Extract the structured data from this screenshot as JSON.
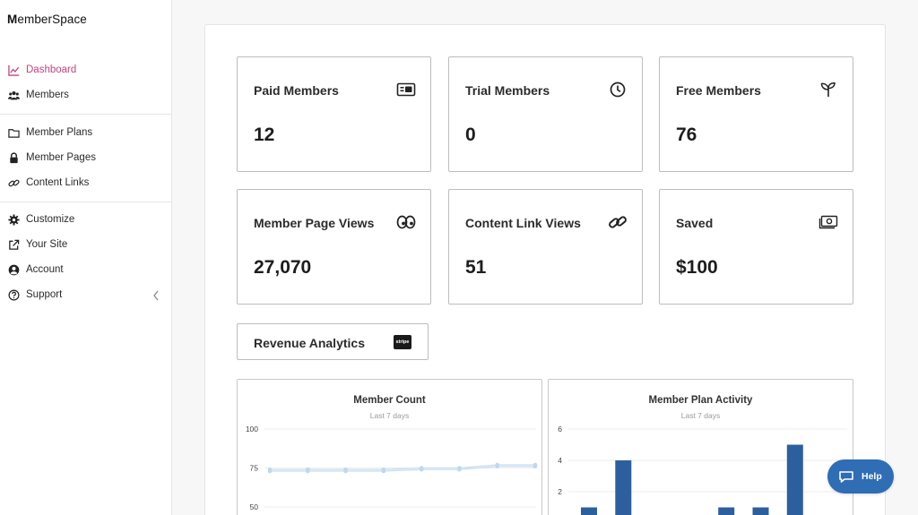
{
  "brand": {
    "logo_prefix": "M",
    "logo_text": "emberSpace"
  },
  "sidebar": {
    "items": [
      {
        "label": "Dashboard",
        "icon": "chart-line-icon",
        "active": true
      },
      {
        "label": "Members",
        "icon": "users-icon"
      },
      {
        "label": "Member Plans",
        "icon": "folder-icon"
      },
      {
        "label": "Member Pages",
        "icon": "lock-icon"
      },
      {
        "label": "Content Links",
        "icon": "link-icon"
      },
      {
        "label": "Customize",
        "icon": "gear-icon"
      },
      {
        "label": "Your Site",
        "icon": "external-link-icon"
      },
      {
        "label": "Account",
        "icon": "user-circle-icon"
      },
      {
        "label": "Support",
        "icon": "question-circle-icon"
      }
    ]
  },
  "stats": [
    {
      "title": "Paid Members",
      "value": "12",
      "icon": "id-card-icon"
    },
    {
      "title": "Trial Members",
      "value": "0",
      "icon": "clock-icon"
    },
    {
      "title": "Free Members",
      "value": "76",
      "icon": "seedling-icon"
    },
    {
      "title": "Member Page Views",
      "value": "27,070",
      "icon": "eyes-icon"
    },
    {
      "title": "Content Link Views",
      "value": "51",
      "icon": "link-icon"
    },
    {
      "title": "Saved",
      "value": "$100",
      "icon": "money-bill-icon"
    }
  ],
  "revenue": {
    "label": "Revenue Analytics",
    "badge": "stripe"
  },
  "chart_data": [
    {
      "type": "line",
      "title": "Member Count",
      "subtitle": "Last 7 days",
      "yticks": [
        "100",
        "75",
        "50"
      ],
      "ylim": [
        50,
        100
      ],
      "series": [
        {
          "values": [
            74,
            74,
            74,
            74,
            75,
            75,
            77,
            77
          ]
        },
        {
          "values": [
            73,
            73,
            73,
            73,
            74,
            74,
            76,
            76
          ]
        }
      ],
      "colors": {
        "line": "#c7ddf2",
        "point": "#bfd7ef"
      }
    },
    {
      "type": "bar",
      "title": "Member Plan Activity",
      "subtitle": "Last 7 days",
      "yticks": [
        "6",
        "4",
        "2"
      ],
      "ylim": [
        0,
        6
      ],
      "values": [
        1,
        4,
        0,
        0,
        1,
        1,
        5
      ],
      "colors": {
        "bar": "#2c5f9e"
      }
    }
  ],
  "help": {
    "label": "Help",
    "color": "#2f6db5"
  },
  "colors": {
    "accent": "#c2447e"
  }
}
